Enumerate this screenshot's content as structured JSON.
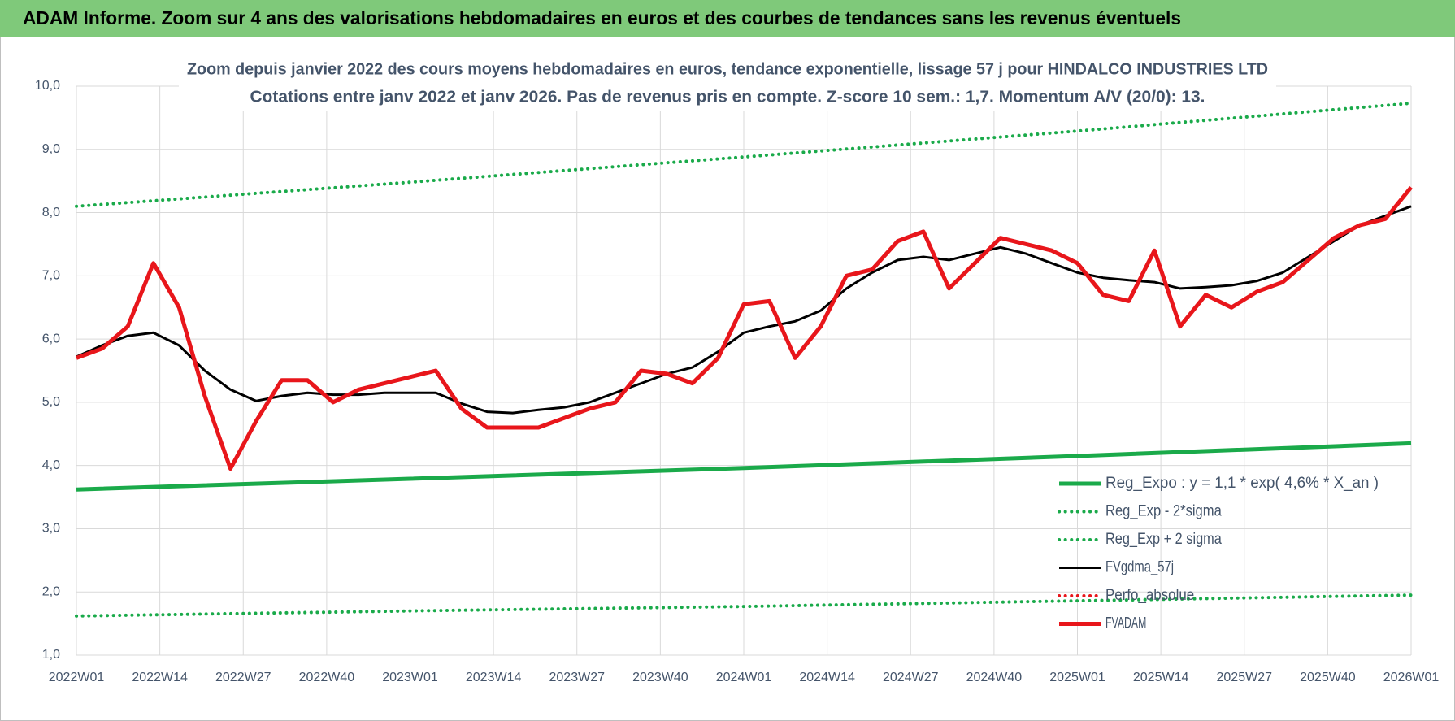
{
  "header": {
    "title": "ADAM Informe. Zoom sur 4 ans des valorisations hebdomadaires en euros et des courbes de tendances sans les revenus éventuels"
  },
  "chart_data": {
    "type": "line",
    "title": "Zoom depuis janvier 2022 des cours moyens hebdomadaires en euros, tendance exponentielle, lissage 57 j pour HINDALCO INDUSTRIES LTD",
    "subtitle": "Cotations entre janv 2022 et janv 2026. Pas de revenus pris en compte. Z-score 10 sem.: 1,7. Momentum A/V (20/0): 13.",
    "x": [
      0,
      4,
      8,
      12,
      16,
      20,
      24,
      28,
      32,
      36,
      40,
      44,
      48,
      52,
      56,
      60,
      64,
      68,
      72,
      76,
      80,
      84,
      88,
      92,
      96,
      100,
      104,
      108,
      112,
      116,
      120,
      124,
      128,
      132,
      136,
      140,
      144,
      148,
      152,
      156,
      160,
      164,
      168,
      172,
      176,
      180,
      184,
      188,
      192,
      196,
      200,
      204,
      208
    ],
    "xlim": [
      0,
      208
    ],
    "xticks": [
      {
        "value": 0,
        "label": "2022W01"
      },
      {
        "value": 13,
        "label": "2022W14"
      },
      {
        "value": 26,
        "label": "2022W27"
      },
      {
        "value": 39,
        "label": "2022W40"
      },
      {
        "value": 52,
        "label": "2023W01"
      },
      {
        "value": 65,
        "label": "2023W14"
      },
      {
        "value": 78,
        "label": "2023W27"
      },
      {
        "value": 91,
        "label": "2023W40"
      },
      {
        "value": 104,
        "label": "2024W01"
      },
      {
        "value": 117,
        "label": "2024W14"
      },
      {
        "value": 130,
        "label": "2024W27"
      },
      {
        "value": 143,
        "label": "2024W40"
      },
      {
        "value": 156,
        "label": "2025W01"
      },
      {
        "value": 169,
        "label": "2025W14"
      },
      {
        "value": 182,
        "label": "2025W27"
      },
      {
        "value": 195,
        "label": "2025W40"
      },
      {
        "value": 208,
        "label": "2026W01"
      }
    ],
    "ylim": [
      1,
      10
    ],
    "yticks": [
      {
        "value": 1,
        "label": "1,0"
      },
      {
        "value": 2,
        "label": "2,0"
      },
      {
        "value": 3,
        "label": "3,0"
      },
      {
        "value": 4,
        "label": "4,0"
      },
      {
        "value": 5,
        "label": "5,0"
      },
      {
        "value": 6,
        "label": "6,0"
      },
      {
        "value": 7,
        "label": "7,0"
      },
      {
        "value": 8,
        "label": "8,0"
      },
      {
        "value": 9,
        "label": "9,0"
      },
      {
        "value": 10,
        "label": "10,0"
      }
    ],
    "grid": true,
    "series": [
      {
        "name": "Reg_Expo : y = 1,1 * exp( 4,6% *  X_an )",
        "color": "#1aaa4a",
        "style": "solid",
        "x": [
          0,
          52,
          104,
          156,
          208
        ],
        "values": [
          3.62,
          3.79,
          3.96,
          4.15,
          4.35
        ]
      },
      {
        "name": "Reg_Exp - 2*sigma",
        "color": "#1aaa4a",
        "style": "dotted",
        "x": [
          0,
          52,
          104,
          156,
          208
        ],
        "values": [
          1.62,
          1.7,
          1.77,
          1.86,
          1.95
        ]
      },
      {
        "name": "Reg_Exp + 2 sigma",
        "color": "#1aaa4a",
        "style": "dotted",
        "x": [
          0,
          52,
          104,
          156,
          208
        ],
        "values": [
          8.1,
          8.48,
          8.88,
          9.29,
          9.73
        ]
      },
      {
        "name": "FVgdma_57j",
        "color": "#000000",
        "style": "solid",
        "values": [
          5.72,
          5.9,
          6.05,
          6.1,
          5.9,
          5.5,
          5.2,
          5.02,
          5.1,
          5.15,
          5.12,
          5.12,
          5.15,
          5.15,
          5.15,
          4.98,
          4.85,
          4.83,
          4.88,
          4.92,
          5.0,
          5.15,
          5.3,
          5.45,
          5.55,
          5.8,
          6.1,
          6.2,
          6.28,
          6.45,
          6.8,
          7.05,
          7.25,
          7.3,
          7.25,
          7.35,
          7.45,
          7.35,
          7.2,
          7.05,
          6.97,
          6.93,
          6.9,
          6.8,
          6.82,
          6.85,
          6.92,
          7.05,
          7.3,
          7.55,
          7.8,
          7.95,
          8.1
        ]
      },
      {
        "name": "Perfo_absolue",
        "color": "#e8161b",
        "style": "dotted"
      },
      {
        "name": "FVADAM",
        "color": "#e8161b",
        "style": "thick",
        "values": [
          5.7,
          5.85,
          6.2,
          7.2,
          6.5,
          5.1,
          3.95,
          4.7,
          5.35,
          5.35,
          5.0,
          5.2,
          5.3,
          5.4,
          5.5,
          4.9,
          4.6,
          4.6,
          4.6,
          4.75,
          4.9,
          5.0,
          5.5,
          5.45,
          5.3,
          5.7,
          6.55,
          6.6,
          5.7,
          6.2,
          7.0,
          7.1,
          7.55,
          7.7,
          6.8,
          7.2,
          7.6,
          7.5,
          7.4,
          7.2,
          6.7,
          6.6,
          7.4,
          6.2,
          6.7,
          6.5,
          6.75,
          6.9,
          7.25,
          7.6,
          7.8,
          7.9,
          8.4
        ]
      }
    ]
  }
}
